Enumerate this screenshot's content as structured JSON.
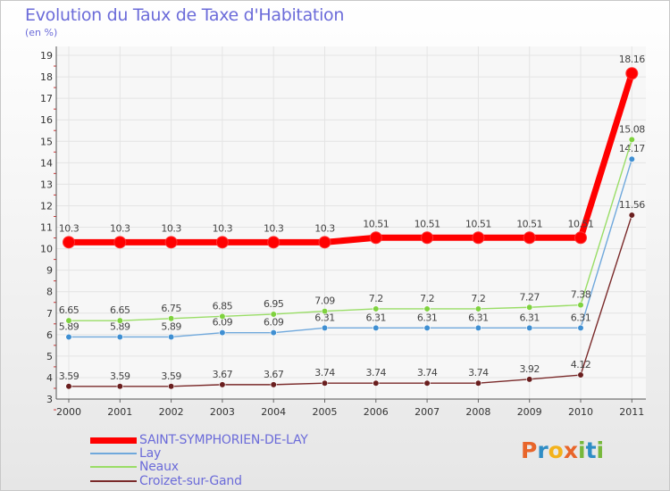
{
  "title": "Evolution du Taux de Taxe d'Habitation",
  "subtitle": "(en %)",
  "brand": "Proxiti",
  "chart_data": {
    "type": "line",
    "title": "Evolution du Taux de Taxe d'Habitation",
    "ylabel": "(en %)",
    "xlabel": "",
    "x": [
      "2000",
      "2001",
      "2002",
      "2003",
      "2004",
      "2005",
      "2006",
      "2007",
      "2008",
      "2009",
      "2010",
      "2011"
    ],
    "ylim": [
      3,
      19
    ],
    "yticks": [
      "3",
      "4",
      "5",
      "6",
      "7",
      "8",
      "9",
      "10",
      "11",
      "12",
      "13",
      "14",
      "15",
      "16",
      "17",
      "18",
      "19"
    ],
    "grid": true,
    "legend_position": "bottom-left",
    "series": [
      {
        "name": "SAINT-SYMPHORIEN-DE-LAY",
        "color": "#ff0000",
        "marker": "#ff0000",
        "values": [
          10.3,
          10.3,
          10.3,
          10.3,
          10.3,
          10.3,
          10.51,
          10.51,
          10.51,
          10.51,
          10.51,
          18.16
        ],
        "labels": [
          "10.3",
          "10.3",
          "10.3",
          "10.3",
          "10.3",
          "10.3",
          "10.51",
          "10.51",
          "10.51",
          "10.51",
          "10.51",
          "18.16"
        ]
      },
      {
        "name": "Lay",
        "color": "#6fa8dc",
        "marker": "#3f8fd2",
        "values": [
          5.89,
          5.89,
          5.89,
          6.09,
          6.09,
          6.31,
          6.31,
          6.31,
          6.31,
          6.31,
          6.31,
          14.17
        ],
        "labels": [
          "5.89",
          "5.89",
          "5.89",
          "6.09",
          "6.09",
          "6.31",
          "6.31",
          "6.31",
          "6.31",
          "6.31",
          "6.31",
          "14.17"
        ]
      },
      {
        "name": "Neaux",
        "color": "#99dd66",
        "marker": "#7fd23f",
        "values": [
          6.65,
          6.65,
          6.75,
          6.85,
          6.95,
          7.09,
          7.2,
          7.2,
          7.2,
          7.27,
          7.38,
          15.08
        ],
        "labels": [
          "6.65",
          "6.65",
          "6.75",
          "6.85",
          "6.95",
          "7.09",
          "7.2",
          "7.2",
          "7.2",
          "7.27",
          "7.38",
          "15.08"
        ]
      },
      {
        "name": "Croizet-sur-Gand",
        "color": "#7a2a2a",
        "marker": "#6a1f1f",
        "values": [
          3.59,
          3.59,
          3.59,
          3.67,
          3.67,
          3.74,
          3.74,
          3.74,
          3.74,
          3.92,
          4.12,
          11.56
        ],
        "labels": [
          "3.59",
          "3.59",
          "3.59",
          "3.67",
          "3.67",
          "3.74",
          "3.74",
          "3.74",
          "3.74",
          "3.92",
          "4.12",
          "11.56"
        ]
      }
    ]
  }
}
